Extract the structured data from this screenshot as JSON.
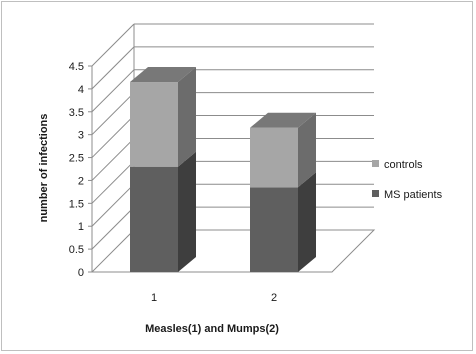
{
  "chart_data": {
    "type": "bar",
    "stacked": true,
    "style": "3d-column",
    "categories": [
      "1",
      "2"
    ],
    "series": [
      {
        "name": "MS patients",
        "values": [
          2.3,
          1.85
        ],
        "color": "#5f5f5f"
      },
      {
        "name": "controls",
        "values": [
          1.85,
          1.3
        ],
        "color": "#a6a6a6"
      }
    ],
    "xlabel": "Measles(1) and Mumps(2)",
    "ylabel": "number of infections",
    "ylim": [
      0,
      4.5
    ],
    "yticks": [
      "0",
      "0.5",
      "1",
      "1.5",
      "2",
      "2.5",
      "3",
      "3.5",
      "4",
      "4.5"
    ],
    "grid": true,
    "legend_position": "right"
  }
}
